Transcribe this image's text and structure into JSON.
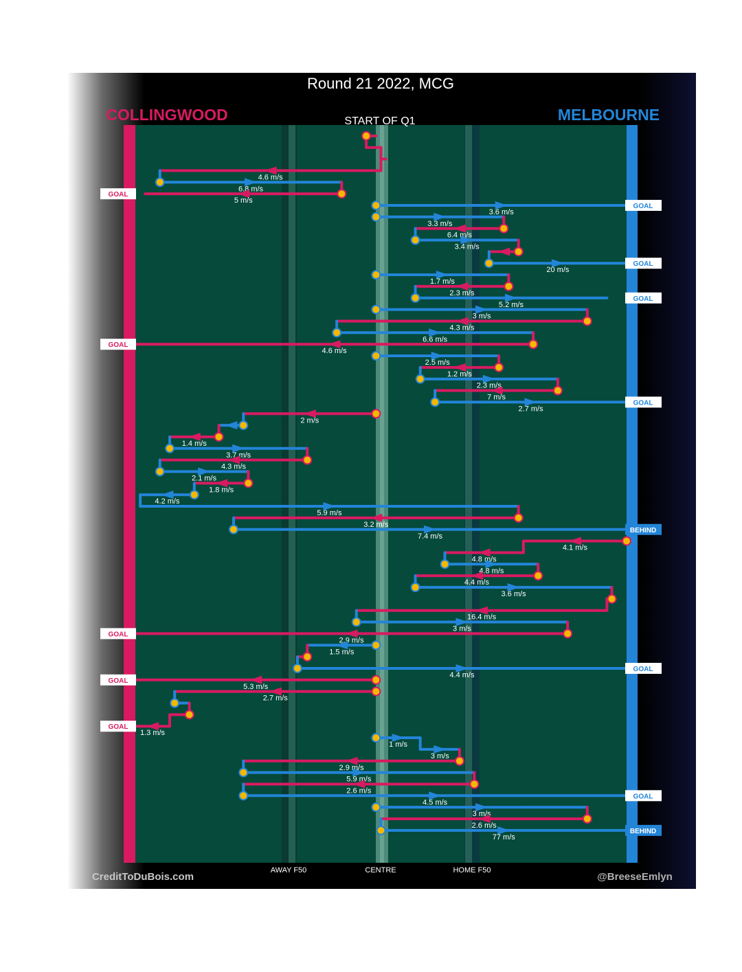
{
  "title": "Round 21 2022, MCG",
  "subtitle": "START OF Q1",
  "teams": {
    "away": "COLLINGWOOD",
    "home": "MELBOURNE"
  },
  "colors": {
    "away": "#d81b60",
    "home": "#2385d8",
    "ground": "#054a3b",
    "background": "#000000",
    "ball": "#f5b800"
  },
  "axis": {
    "away_f50": "AWAY F50",
    "centre": "CENTRE",
    "home_f50": "HOME F50"
  },
  "credits": {
    "left": "CreditToDuBois.com",
    "right": "@BreeseEmlyn"
  },
  "outcomes": {
    "goal": "GOAL",
    "behind": "BEHIND"
  },
  "chart_data": {
    "type": "possession-chain",
    "title": "Round 21 2022, MCG",
    "x_axis": {
      "range": [
        0,
        100
      ],
      "units": "percent of ground from away goal line to home goal line",
      "ticks": [
        {
          "label": "AWAY F50",
          "value": 30
        },
        {
          "label": "CENTRE",
          "value": 50
        },
        {
          "label": "HOME F50",
          "value": 67
        }
      ]
    },
    "y_axis": "chain number from start of Q1 (top) downward",
    "chains": [
      {
        "id": 1,
        "team": "collingwood",
        "start_row": 1,
        "end": "GOAL",
        "legs": [
          {
            "team": "collingwood",
            "row": 1,
            "x_from": 47,
            "x_to": 49
          },
          {
            "team": "collingwood",
            "row": 2,
            "x_from": 47,
            "x_to": 50
          },
          {
            "team": "collingwood",
            "row": 3,
            "x_from": 50,
            "x_to": 51
          },
          {
            "team": "collingwood",
            "row": 4,
            "x_from": 50,
            "x_to": 5,
            "speed": "4.6 m/s"
          },
          {
            "team": "melbourne",
            "row": 5,
            "x_from": 5,
            "x_to": 42,
            "speed": "6.8 m/s"
          },
          {
            "team": "collingwood",
            "row": 6,
            "x_from": 42,
            "x_to": 2,
            "speed": "5 m/s"
          }
        ]
      },
      {
        "id": 2,
        "team": "melbourne",
        "start_row": 7,
        "end": "GOAL",
        "legs": [
          {
            "team": "melbourne",
            "row": 7,
            "x_from": 49,
            "x_to": 100,
            "speed": "3.6 m/s"
          }
        ]
      },
      {
        "id": 3,
        "team": "melbourne",
        "start_row": 8,
        "end": "GOAL",
        "legs": [
          {
            "team": "melbourne",
            "row": 8,
            "x_from": 49,
            "x_to": 75,
            "speed": "3.3 m/s"
          },
          {
            "team": "collingwood",
            "row": 9,
            "x_from": 75,
            "x_to": 57,
            "speed": "6.4 m/s"
          },
          {
            "team": "melbourne",
            "row": 10,
            "x_from": 57,
            "x_to": 78,
            "speed": "3.4 m/s"
          },
          {
            "team": "collingwood",
            "row": 11,
            "x_from": 78,
            "x_to": 72
          },
          {
            "team": "melbourne",
            "row": 12,
            "x_from": 72,
            "x_to": 100,
            "speed": "20 m/s"
          }
        ]
      },
      {
        "id": 4,
        "team": "melbourne",
        "start_row": 13,
        "end": "GOAL",
        "legs": [
          {
            "team": "melbourne",
            "row": 13,
            "x_from": 49,
            "x_to": 76,
            "speed": "1.7 m/s"
          },
          {
            "team": "collingwood",
            "row": 14,
            "x_from": 76,
            "x_to": 57,
            "speed": "2.3 m/s"
          },
          {
            "team": "melbourne",
            "row": 15,
            "x_from": 57,
            "x_to": 96,
            "speed": "5.2 m/s"
          }
        ]
      },
      {
        "id": 5,
        "team": "melbourne",
        "start_row": 16,
        "end": "GOAL",
        "legs": [
          {
            "team": "melbourne",
            "row": 16,
            "x_from": 49,
            "x_to": 92,
            "speed": "3 m/s"
          },
          {
            "team": "collingwood",
            "row": 17,
            "x_from": 92,
            "x_to": 41,
            "speed": "4.3 m/s"
          },
          {
            "team": "melbourne",
            "row": 18,
            "x_from": 41,
            "x_to": 81,
            "speed": "6.6 m/s"
          },
          {
            "team": "collingwood",
            "row": 19,
            "x_from": 81,
            "x_to": 0,
            "speed": "4.6 m/s"
          }
        ]
      },
      {
        "id": 6,
        "team": "melbourne",
        "start_row": 20,
        "end": "GOAL",
        "legs": [
          {
            "team": "melbourne",
            "row": 20,
            "x_from": 49,
            "x_to": 74,
            "speed": "2.5 m/s"
          },
          {
            "team": "collingwood",
            "row": 21,
            "x_from": 74,
            "x_to": 58,
            "speed": "1.2 m/s"
          },
          {
            "team": "melbourne",
            "row": 22,
            "x_from": 58,
            "x_to": 86,
            "speed": "2.3 m/s"
          },
          {
            "team": "collingwood",
            "row": 23,
            "x_from": 86,
            "x_to": 61,
            "speed": "7 m/s"
          },
          {
            "team": "melbourne",
            "row": 24,
            "x_from": 61,
            "x_to": 100,
            "speed": "2.7 m/s"
          }
        ]
      },
      {
        "id": 7,
        "team": "collingwood",
        "start_row": 25,
        "end": "BEHIND",
        "legs": [
          {
            "team": "collingwood",
            "row": 25,
            "x_from": 49,
            "x_to": 22,
            "speed": "2 m/s"
          },
          {
            "team": "melbourne",
            "row": 26,
            "x_from": 22,
            "x_to": 17
          },
          {
            "team": "collingwood",
            "row": 27,
            "x_from": 17,
            "x_to": 7,
            "speed": "1.4 m/s"
          },
          {
            "team": "melbourne",
            "row": 28,
            "x_from": 7,
            "x_to": 35,
            "speed": "3.7 m/s"
          },
          {
            "team": "collingwood",
            "row": 29,
            "x_from": 35,
            "x_to": 5,
            "speed": "4.3 m/s"
          },
          {
            "team": "melbourne",
            "row": 30,
            "x_from": 5,
            "x_to": 23,
            "speed": "2.1 m/s"
          },
          {
            "team": "collingwood",
            "row": 31,
            "x_from": 23,
            "x_to": 12,
            "speed": "1.8 m/s"
          },
          {
            "team": "melbourne",
            "row": 32,
            "x_from": 12,
            "x_to": 1,
            "speed": "4.2 m/s"
          },
          {
            "team": "melbourne",
            "row": 33,
            "x_from": 1,
            "x_to": 78,
            "speed": "5.9 m/s"
          },
          {
            "team": "collingwood",
            "row": 34,
            "x_from": 78,
            "x_to": 20,
            "speed": "3.2 m/s"
          },
          {
            "team": "melbourne",
            "row": 35,
            "x_from": 20,
            "x_to": 100,
            "speed": "7.4 m/s"
          }
        ]
      },
      {
        "id": 8,
        "team": "collingwood",
        "start_row": 36,
        "end": "GOAL",
        "legs": [
          {
            "team": "collingwood",
            "row": 36,
            "x_from": 100,
            "x_to": 79,
            "speed": "4.1 m/s"
          },
          {
            "team": "collingwood",
            "row": 37,
            "x_from": 79,
            "x_to": 63,
            "speed": "4.8 m/s"
          },
          {
            "team": "melbourne",
            "row": 38,
            "x_from": 63,
            "x_to": 82,
            "speed": "4.8 m/s"
          },
          {
            "team": "collingwood",
            "row": 39,
            "x_from": 82,
            "x_to": 57,
            "speed": "4.4 m/s"
          },
          {
            "team": "melbourne",
            "row": 40,
            "x_from": 57,
            "x_to": 97,
            "speed": "3.6 m/s"
          },
          {
            "team": "collingwood",
            "row": 41,
            "x_from": 97,
            "x_to": 96
          },
          {
            "team": "collingwood",
            "row": 42,
            "x_from": 96,
            "x_to": 45,
            "speed": "16.4 m/s"
          },
          {
            "team": "melbourne",
            "row": 43,
            "x_from": 45,
            "x_to": 88,
            "speed": "3 m/s"
          },
          {
            "team": "collingwood",
            "row": 44,
            "x_from": 88,
            "x_to": 0,
            "speed": "2.9 m/s"
          }
        ]
      },
      {
        "id": 9,
        "team": "melbourne",
        "start_row": 45,
        "end": "GOAL",
        "legs": [
          {
            "team": "melbourne",
            "row": 45,
            "x_from": 49,
            "x_to": 35,
            "speed": "1.5 m/s"
          },
          {
            "team": "collingwood",
            "row": 46,
            "x_from": 35,
            "x_to": 33
          },
          {
            "team": "melbourne",
            "row": 47,
            "x_from": 33,
            "x_to": 100,
            "speed": "4.4 m/s"
          }
        ]
      },
      {
        "id": 10,
        "team": "collingwood",
        "start_row": 48,
        "end": "GOAL",
        "legs": [
          {
            "team": "collingwood",
            "row": 48,
            "x_from": 49,
            "x_to": 0,
            "speed": "5.3 m/s"
          }
        ]
      },
      {
        "id": 11,
        "team": "collingwood",
        "start_row": 49,
        "end": "GOAL",
        "legs": [
          {
            "team": "collingwood",
            "row": 49,
            "x_from": 49,
            "x_to": 8,
            "speed": "2.7 m/s"
          },
          {
            "team": "melbourne",
            "row": 50,
            "x_from": 8,
            "x_to": 11
          },
          {
            "team": "collingwood",
            "row": 51,
            "x_from": 11,
            "x_to": 7
          },
          {
            "team": "collingwood",
            "row": 52,
            "x_from": 7,
            "x_to": 0,
            "speed": "1.3 m/s"
          }
        ]
      },
      {
        "id": 12,
        "team": "melbourne",
        "start_row": 53,
        "end": "GOAL",
        "legs": [
          {
            "team": "melbourne",
            "row": 53,
            "x_from": 49,
            "x_to": 58,
            "speed": "1 m/s"
          },
          {
            "team": "melbourne",
            "row": 54,
            "x_from": 58,
            "x_to": 66,
            "speed": "3 m/s"
          },
          {
            "team": "collingwood",
            "row": 55,
            "x_from": 66,
            "x_to": 22,
            "speed": "2.9 m/s"
          },
          {
            "team": "melbourne",
            "row": 56,
            "x_from": 22,
            "x_to": 69,
            "speed": "5.9 m/s"
          },
          {
            "team": "collingwood",
            "row": 57,
            "x_from": 69,
            "x_to": 22,
            "speed": "2.6 m/s"
          },
          {
            "team": "melbourne",
            "row": 58,
            "x_from": 22,
            "x_to": 100,
            "speed": "4.5 m/s"
          }
        ]
      },
      {
        "id": 13,
        "team": "melbourne",
        "start_row": 59,
        "end": "BEHIND",
        "legs": [
          {
            "team": "melbourne",
            "row": 59,
            "x_from": 49,
            "x_to": 92,
            "speed": "3 m/s"
          },
          {
            "team": "collingwood",
            "row": 60,
            "x_from": 92,
            "x_to": 50,
            "speed": "2.6 m/s"
          },
          {
            "team": "melbourne",
            "row": 61,
            "x_from": 50,
            "x_to": 100,
            "speed": "77 m/s"
          }
        ]
      }
    ]
  }
}
